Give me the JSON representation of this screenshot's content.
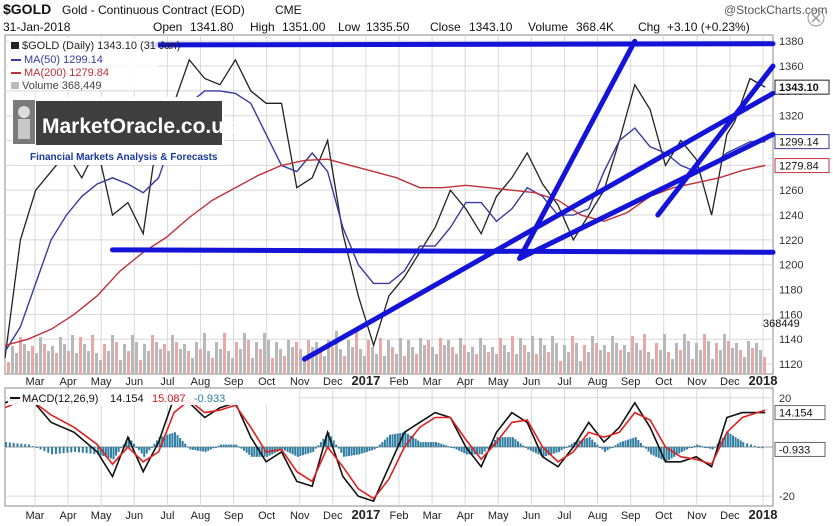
{
  "header": {
    "symbol": "$GOLD",
    "name": "Gold - Continuous Contract (EOD)",
    "exchange": "CME",
    "date": "31-Jan-2018",
    "open_label": "Open",
    "open": "1341.80",
    "high_label": "High",
    "high": "1351.00",
    "low_label": "Low",
    "low": "1335.50",
    "close_label": "Close",
    "close": "1343.10",
    "volume_label": "Volume",
    "volume": "368.4K",
    "chg_label": "Chg",
    "chg": "+3.10 (+0.23%)",
    "brand": "@StockCharts.com"
  },
  "legend": {
    "price": "$GOLD (Daily) 1343.10 (31 Jan)",
    "ma50": "MA(50) 1299.14",
    "ma200": "MA(200) 1279.84",
    "volume": "Volume 368,449"
  },
  "watermark": {
    "title": "MarketOracle.co.uk",
    "subtitle": "Financial Markets Analysis & Forecasts"
  },
  "colors": {
    "price": "#222222",
    "down_candle": "#d01020",
    "ma50": "#3a3aa0",
    "ma200": "#c0303a",
    "trendline": "#1414d8",
    "volume_up": "#b8b8b8",
    "volume_down": "#e8a8a8",
    "macd": "#111111",
    "signal": "#e02020",
    "hist": "#2f7da0",
    "grid": "#d8d8d8"
  },
  "macd_legend": {
    "label": "MACD(12,26,9)",
    "macd": "14.154",
    "signal": "15.087",
    "hist": "-0.933"
  },
  "chart_data": [
    {
      "type": "line",
      "title": "",
      "xlabel": "",
      "ylabel": "",
      "x_ticks": [
        "Mar",
        "Apr",
        "May",
        "Jun",
        "Jul",
        "Aug",
        "Sep",
        "Oct",
        "Nov",
        "Dec",
        "2017",
        "Feb",
        "Mar",
        "Apr",
        "May",
        "Jun",
        "Jul",
        "Aug",
        "Sep",
        "Oct",
        "Nov",
        "Dec",
        "2018"
      ],
      "y_ticks": [
        1120,
        1140,
        1160,
        1180,
        1200,
        1220,
        1240,
        1260,
        1280,
        1300,
        1320,
        1340,
        1360,
        1380
      ],
      "ylim": [
        1112,
        1385
      ],
      "xlim": [
        0,
        100
      ],
      "series": [
        {
          "name": "$GOLD (Daily)",
          "x": [
            0,
            2,
            4,
            6,
            8,
            10,
            12,
            14,
            16,
            18,
            20,
            22,
            24,
            26,
            28,
            30,
            32,
            34,
            36,
            38,
            40,
            42,
            44,
            46,
            48,
            50,
            52,
            54,
            56,
            58,
            60,
            62,
            64,
            66,
            68,
            70,
            72,
            74,
            76,
            78,
            80,
            82,
            84,
            86,
            88,
            90,
            92,
            94,
            95,
            97,
            99
          ],
          "values": [
            1125,
            1220,
            1260,
            1275,
            1290,
            1270,
            1295,
            1240,
            1250,
            1225,
            1310,
            1330,
            1365,
            1350,
            1345,
            1365,
            1340,
            1330,
            1330,
            1262,
            1270,
            1300,
            1225,
            1175,
            1135,
            1175,
            1190,
            1210,
            1230,
            1260,
            1245,
            1225,
            1255,
            1270,
            1290,
            1265,
            1248,
            1220,
            1240,
            1260,
            1300,
            1345,
            1325,
            1280,
            1300,
            1285,
            1240,
            1305,
            1315,
            1350,
            1343
          ]
        },
        {
          "name": "MA(50)",
          "x": [
            0,
            2,
            4,
            6,
            8,
            10,
            12,
            14,
            16,
            18,
            20,
            22,
            24,
            26,
            28,
            30,
            32,
            34,
            36,
            38,
            40,
            42,
            44,
            46,
            48,
            50,
            52,
            54,
            56,
            58,
            60,
            62,
            64,
            66,
            68,
            70,
            72,
            74,
            76,
            78,
            80,
            82,
            84,
            86,
            88,
            90,
            92,
            94,
            97,
            99
          ],
          "values": [
            1130,
            1150,
            1185,
            1220,
            1240,
            1255,
            1265,
            1270,
            1265,
            1258,
            1270,
            1305,
            1330,
            1340,
            1340,
            1338,
            1330,
            1305,
            1280,
            1275,
            1290,
            1275,
            1230,
            1200,
            1185,
            1185,
            1195,
            1215,
            1215,
            1230,
            1250,
            1250,
            1235,
            1245,
            1262,
            1255,
            1240,
            1240,
            1245,
            1275,
            1300,
            1310,
            1295,
            1290,
            1280,
            1275,
            1280,
            1290,
            1299,
            1299
          ]
        },
        {
          "name": "MA(200)",
          "x": [
            0,
            3,
            6,
            9,
            12,
            15,
            18,
            21,
            24,
            27,
            30,
            33,
            36,
            39,
            42,
            45,
            48,
            51,
            54,
            57,
            60,
            63,
            66,
            69,
            72,
            75,
            78,
            81,
            84,
            87,
            90,
            93,
            96,
            99
          ],
          "values": [
            1135,
            1140,
            1148,
            1160,
            1175,
            1195,
            1210,
            1222,
            1238,
            1252,
            1262,
            1272,
            1280,
            1284,
            1285,
            1280,
            1275,
            1270,
            1262,
            1262,
            1264,
            1262,
            1260,
            1258,
            1252,
            1240,
            1235,
            1242,
            1255,
            1262,
            1266,
            1270,
            1276,
            1280
          ]
        }
      ],
      "annotations": [
        {
          "label": "Support line",
          "x": [
            14,
            100
          ],
          "values": [
            1212,
            1210
          ]
        },
        {
          "label": "Resistance line",
          "x": [
            19,
            100
          ],
          "values": [
            1377,
            1378
          ]
        },
        {
          "label": "Trendline",
          "x": [
            39,
            100
          ],
          "values": [
            1124,
            1338
          ]
        },
        {
          "label": "Trendline",
          "x": [
            67,
            100
          ],
          "values": [
            1205,
            1305
          ]
        },
        {
          "label": "Trendline",
          "x": [
            67,
            82
          ],
          "values": [
            1205,
            1380
          ]
        },
        {
          "label": "Trendline",
          "x": [
            85,
            100
          ],
          "values": [
            1240,
            1360
          ]
        }
      ],
      "volume_scale_ticks": [
        1140,
        1160
      ],
      "volume_value": "368449"
    },
    {
      "type": "line",
      "title": "",
      "x_ticks": [
        "Mar",
        "Apr",
        "May",
        "Jun",
        "Jul",
        "Aug",
        "Sep",
        "Oct",
        "Nov",
        "Dec",
        "2017",
        "Feb",
        "Mar",
        "Apr",
        "May",
        "Jun",
        "Jul",
        "Aug",
        "Sep",
        "Oct",
        "Nov",
        "Dec",
        "2018"
      ],
      "y_ticks": [
        -20,
        0,
        20
      ],
      "ylim": [
        -24,
        24
      ],
      "series": [
        {
          "name": "MACD",
          "x": [
            0,
            3,
            6,
            9,
            12,
            14,
            16,
            18,
            20,
            22,
            24,
            26,
            28,
            30,
            32,
            34,
            36,
            38,
            40,
            42,
            44,
            46,
            48,
            50,
            52,
            54,
            56,
            58,
            60,
            62,
            64,
            66,
            68,
            70,
            72,
            74,
            76,
            78,
            80,
            82,
            84,
            86,
            88,
            90,
            92,
            94,
            96,
            99
          ],
          "values": [
            18,
            21,
            10,
            6,
            -2,
            -12,
            4,
            -10,
            2,
            20,
            18,
            12,
            16,
            18,
            4,
            -6,
            -2,
            -14,
            -16,
            6,
            -12,
            -20,
            -22,
            -8,
            6,
            10,
            14,
            12,
            0,
            -8,
            6,
            14,
            10,
            -4,
            -8,
            0,
            10,
            2,
            8,
            18,
            8,
            -6,
            -6,
            -4,
            -8,
            12,
            14,
            14
          ]
        },
        {
          "name": "Signal",
          "x": [
            0,
            3,
            6,
            9,
            12,
            14,
            16,
            18,
            20,
            22,
            24,
            26,
            28,
            30,
            32,
            34,
            36,
            38,
            40,
            42,
            44,
            46,
            48,
            50,
            52,
            54,
            56,
            58,
            60,
            62,
            64,
            66,
            68,
            70,
            72,
            74,
            76,
            78,
            80,
            82,
            84,
            86,
            88,
            90,
            92,
            94,
            96,
            99
          ],
          "values": [
            16,
            20,
            13,
            8,
            1,
            -7,
            0,
            -6,
            -2,
            14,
            19,
            14,
            15,
            17,
            8,
            -2,
            -1,
            -10,
            -14,
            0,
            -8,
            -17,
            -21,
            -13,
            0,
            8,
            12,
            12,
            3,
            -5,
            2,
            10,
            11,
            0,
            -6,
            -2,
            6,
            4,
            6,
            14,
            11,
            0,
            -4,
            -5,
            -7,
            6,
            12,
            15
          ]
        }
      ]
    }
  ]
}
